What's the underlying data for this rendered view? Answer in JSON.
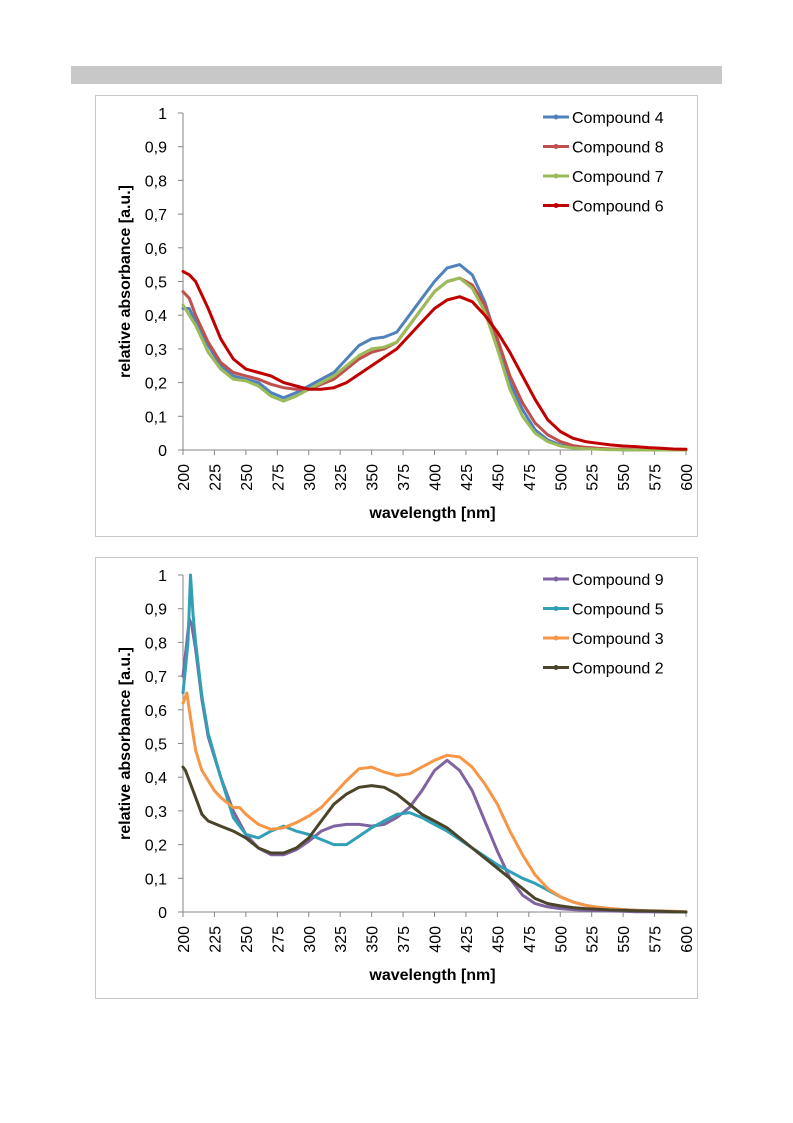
{
  "chart_data": [
    {
      "type": "line",
      "title": "",
      "xlabel": "wavelength [nm]",
      "ylabel": "relative absorbance [a.u.]",
      "xlim": [
        200,
        600
      ],
      "ylim": [
        0,
        1
      ],
      "xticks": [
        "200",
        "225",
        "250",
        "275",
        "300",
        "325",
        "350",
        "375",
        "400",
        "425",
        "450",
        "475",
        "500",
        "525",
        "550",
        "575",
        "600"
      ],
      "yticks": [
        "0",
        "0,1",
        "0,2",
        "0,3",
        "0,4",
        "0,5",
        "0,6",
        "0,7",
        "0,8",
        "0,9",
        "1"
      ],
      "grid": false,
      "legend": "top-right",
      "series": [
        {
          "name": "Compound 4",
          "color": "#4f81bd",
          "x": [
            200,
            205,
            210,
            220,
            230,
            240,
            250,
            260,
            270,
            280,
            290,
            300,
            310,
            320,
            330,
            340,
            350,
            360,
            370,
            380,
            390,
            400,
            410,
            420,
            430,
            440,
            450,
            460,
            470,
            480,
            490,
            500,
            510,
            520,
            530,
            540,
            550,
            560,
            570,
            580,
            590,
            600
          ],
          "y": [
            0.42,
            0.42,
            0.38,
            0.31,
            0.25,
            0.22,
            0.21,
            0.2,
            0.17,
            0.155,
            0.17,
            0.19,
            0.21,
            0.23,
            0.27,
            0.31,
            0.33,
            0.335,
            0.35,
            0.4,
            0.45,
            0.5,
            0.54,
            0.55,
            0.52,
            0.44,
            0.32,
            0.2,
            0.12,
            0.06,
            0.03,
            0.015,
            0.008,
            0.005,
            0.003,
            0.002,
            0.001,
            0.001,
            0,
            0,
            0,
            0
          ]
        },
        {
          "name": "Compound 8",
          "color": "#c0504d",
          "x": [
            200,
            205,
            210,
            220,
            230,
            240,
            250,
            260,
            270,
            280,
            290,
            300,
            310,
            320,
            330,
            340,
            350,
            360,
            370,
            380,
            390,
            400,
            410,
            420,
            430,
            440,
            450,
            460,
            470,
            480,
            490,
            500,
            510,
            520,
            530,
            540,
            550,
            560,
            570,
            580,
            590,
            600
          ],
          "y": [
            0.47,
            0.45,
            0.4,
            0.32,
            0.26,
            0.23,
            0.22,
            0.21,
            0.195,
            0.185,
            0.18,
            0.18,
            0.195,
            0.21,
            0.24,
            0.27,
            0.29,
            0.3,
            0.32,
            0.37,
            0.42,
            0.47,
            0.5,
            0.51,
            0.49,
            0.43,
            0.33,
            0.22,
            0.14,
            0.08,
            0.045,
            0.025,
            0.013,
            0.008,
            0.005,
            0.003,
            0.002,
            0.001,
            0.001,
            0,
            0,
            0
          ]
        },
        {
          "name": "Compound 7",
          "color": "#9bbb59",
          "x": [
            200,
            205,
            210,
            220,
            230,
            240,
            250,
            260,
            270,
            280,
            290,
            300,
            310,
            320,
            330,
            340,
            350,
            360,
            370,
            380,
            390,
            400,
            410,
            420,
            430,
            440,
            450,
            460,
            470,
            480,
            490,
            500,
            510,
            520,
            530,
            540,
            550,
            560,
            570,
            580,
            590,
            600
          ],
          "y": [
            0.43,
            0.4,
            0.37,
            0.29,
            0.24,
            0.21,
            0.205,
            0.19,
            0.16,
            0.145,
            0.16,
            0.18,
            0.2,
            0.22,
            0.25,
            0.28,
            0.3,
            0.305,
            0.32,
            0.37,
            0.42,
            0.47,
            0.5,
            0.51,
            0.48,
            0.41,
            0.3,
            0.18,
            0.1,
            0.05,
            0.025,
            0.012,
            0.006,
            0.004,
            0.002,
            0.001,
            0.001,
            0,
            0,
            0,
            0,
            0
          ]
        },
        {
          "name": "Compound 6",
          "color": "#c00000",
          "x": [
            200,
            205,
            210,
            220,
            230,
            240,
            250,
            260,
            270,
            280,
            290,
            300,
            310,
            320,
            330,
            340,
            350,
            360,
            370,
            380,
            390,
            400,
            410,
            420,
            430,
            440,
            450,
            460,
            470,
            480,
            490,
            500,
            510,
            520,
            530,
            540,
            550,
            560,
            570,
            580,
            590,
            600
          ],
          "y": [
            0.53,
            0.52,
            0.5,
            0.42,
            0.33,
            0.27,
            0.24,
            0.23,
            0.22,
            0.2,
            0.19,
            0.18,
            0.18,
            0.185,
            0.2,
            0.225,
            0.25,
            0.275,
            0.3,
            0.34,
            0.38,
            0.42,
            0.445,
            0.455,
            0.44,
            0.4,
            0.35,
            0.29,
            0.22,
            0.15,
            0.09,
            0.055,
            0.035,
            0.025,
            0.02,
            0.015,
            0.012,
            0.01,
            0.007,
            0.005,
            0.003,
            0.002
          ]
        }
      ]
    },
    {
      "type": "line",
      "title": "",
      "xlabel": "wavelength [nm]",
      "ylabel": "relative absorbance [a.u.]",
      "xlim": [
        200,
        600
      ],
      "ylim": [
        0,
        1
      ],
      "xticks": [
        "200",
        "225",
        "250",
        "275",
        "300",
        "325",
        "350",
        "375",
        "400",
        "425",
        "450",
        "475",
        "500",
        "525",
        "550",
        "575",
        "600"
      ],
      "yticks": [
        "0",
        "0,1",
        "0,2",
        "0,3",
        "0,4",
        "0,5",
        "0,6",
        "0,7",
        "0,8",
        "0,9",
        "1"
      ],
      "grid": false,
      "legend": "top-right",
      "series": [
        {
          "name": "Compound 9",
          "color": "#8064a2",
          "x": [
            200,
            203,
            205,
            207,
            210,
            215,
            220,
            230,
            240,
            250,
            260,
            270,
            280,
            290,
            300,
            310,
            320,
            330,
            340,
            350,
            360,
            370,
            380,
            390,
            400,
            410,
            420,
            430,
            440,
            450,
            460,
            470,
            480,
            490,
            500,
            510,
            520,
            530,
            540,
            550,
            560,
            570,
            580,
            590,
            600
          ],
          "y": [
            0.7,
            0.8,
            0.87,
            0.85,
            0.78,
            0.63,
            0.52,
            0.4,
            0.3,
            0.23,
            0.19,
            0.17,
            0.17,
            0.185,
            0.21,
            0.24,
            0.255,
            0.26,
            0.26,
            0.255,
            0.26,
            0.28,
            0.31,
            0.36,
            0.42,
            0.45,
            0.42,
            0.36,
            0.27,
            0.18,
            0.1,
            0.05,
            0.025,
            0.015,
            0.01,
            0.007,
            0.005,
            0.004,
            0.003,
            0.002,
            0.001,
            0.001,
            0,
            0,
            0
          ]
        },
        {
          "name": "Compound 5",
          "color": "#31a0b6",
          "x": [
            200,
            204,
            206,
            208,
            210,
            215,
            220,
            230,
            240,
            250,
            260,
            270,
            280,
            290,
            300,
            310,
            320,
            330,
            340,
            350,
            360,
            370,
            380,
            390,
            400,
            410,
            420,
            430,
            440,
            450,
            460,
            470,
            480,
            490,
            500,
            510,
            520,
            530,
            540,
            550,
            560,
            570,
            580,
            590,
            600
          ],
          "y": [
            0.65,
            0.8,
            1.0,
            0.88,
            0.8,
            0.64,
            0.53,
            0.4,
            0.28,
            0.23,
            0.22,
            0.24,
            0.255,
            0.24,
            0.23,
            0.215,
            0.2,
            0.2,
            0.225,
            0.25,
            0.27,
            0.29,
            0.295,
            0.28,
            0.26,
            0.24,
            0.215,
            0.19,
            0.165,
            0.14,
            0.12,
            0.1,
            0.085,
            0.065,
            0.045,
            0.03,
            0.02,
            0.014,
            0.01,
            0.007,
            0.005,
            0.003,
            0.002,
            0.001,
            0
          ]
        },
        {
          "name": "Compound 3",
          "color": "#f79646",
          "x": [
            200,
            203,
            205,
            210,
            215,
            220,
            225,
            230,
            240,
            245,
            250,
            260,
            270,
            280,
            290,
            300,
            310,
            320,
            330,
            340,
            350,
            360,
            370,
            380,
            390,
            400,
            410,
            420,
            430,
            440,
            450,
            460,
            470,
            480,
            490,
            500,
            510,
            520,
            530,
            540,
            550,
            560,
            570,
            580,
            590,
            600
          ],
          "y": [
            0.62,
            0.65,
            0.6,
            0.48,
            0.42,
            0.39,
            0.36,
            0.34,
            0.31,
            0.31,
            0.29,
            0.26,
            0.245,
            0.25,
            0.265,
            0.285,
            0.31,
            0.35,
            0.39,
            0.425,
            0.43,
            0.415,
            0.405,
            0.41,
            0.43,
            0.45,
            0.465,
            0.46,
            0.43,
            0.38,
            0.32,
            0.24,
            0.17,
            0.11,
            0.07,
            0.045,
            0.03,
            0.02,
            0.014,
            0.01,
            0.007,
            0.005,
            0.004,
            0.003,
            0.002,
            0.001
          ]
        },
        {
          "name": "Compound 2",
          "color": "#4a452a",
          "x": [
            200,
            202,
            205,
            210,
            215,
            220,
            230,
            240,
            250,
            260,
            270,
            280,
            290,
            300,
            310,
            320,
            330,
            340,
            350,
            360,
            370,
            380,
            390,
            400,
            410,
            420,
            430,
            440,
            450,
            460,
            470,
            480,
            490,
            500,
            510,
            520,
            530,
            540,
            550,
            560,
            570,
            580,
            590,
            600
          ],
          "y": [
            0.43,
            0.42,
            0.39,
            0.34,
            0.29,
            0.27,
            0.255,
            0.24,
            0.22,
            0.19,
            0.175,
            0.175,
            0.19,
            0.22,
            0.27,
            0.32,
            0.35,
            0.37,
            0.375,
            0.37,
            0.35,
            0.32,
            0.29,
            0.27,
            0.25,
            0.22,
            0.19,
            0.16,
            0.13,
            0.1,
            0.07,
            0.04,
            0.025,
            0.018,
            0.013,
            0.01,
            0.008,
            0.006,
            0.005,
            0.004,
            0.003,
            0.002,
            0.001,
            0
          ]
        }
      ]
    }
  ]
}
